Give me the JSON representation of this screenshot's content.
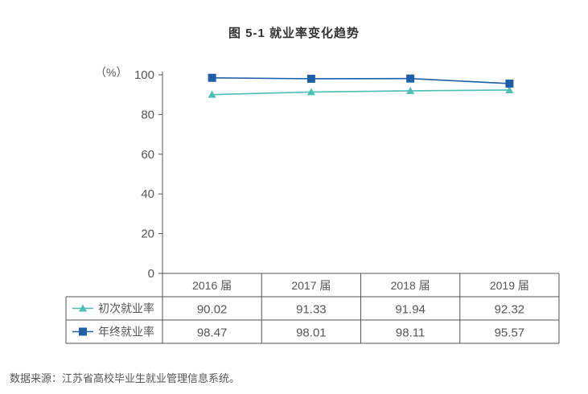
{
  "chart_data": {
    "type": "line",
    "title": "图 5-1  就业率变化趋势",
    "ylabel": "（%）",
    "categories": [
      "2016 届",
      "2017 届",
      "2018 届",
      "2019 届"
    ],
    "ylim": [
      0,
      100
    ],
    "yticks": [
      0,
      20,
      40,
      60,
      80,
      100
    ],
    "series": [
      {
        "name": "初次就业率",
        "values": [
          90.02,
          91.33,
          91.94,
          92.32
        ],
        "color": "#4bbfb6",
        "marker": "triangle"
      },
      {
        "name": "年终就业率",
        "values": [
          98.47,
          98.01,
          98.11,
          95.57
        ],
        "color": "#1f5fa8",
        "marker": "square"
      }
    ],
    "legend": "table-left",
    "grid": false
  },
  "source": "数据来源：江苏省高校毕业生就业管理信息系统。"
}
